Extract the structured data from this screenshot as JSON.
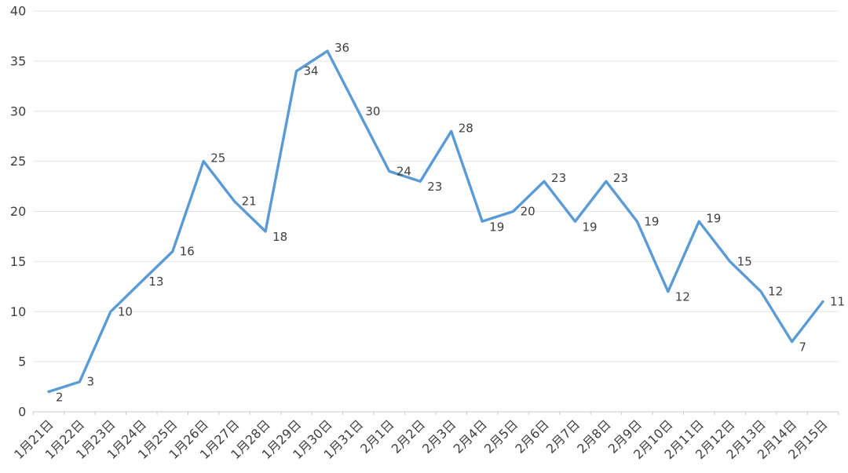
{
  "chart_data": {
    "type": "line",
    "title": "",
    "subtitle": "",
    "xlabel": "",
    "ylabel": "",
    "categories": [
      "1月21日",
      "1月22日",
      "1月23日",
      "1月24日",
      "1月25日",
      "1月26日",
      "1月27日",
      "1月28日",
      "1月29日",
      "1月30日",
      "1月31日",
      "2月1日",
      "2月2日",
      "2月3日",
      "2月4日",
      "2月5日",
      "2月6日",
      "2月7日",
      "2月8日",
      "2月9日",
      "2月10日",
      "2月11日",
      "2月12日",
      "2月13日",
      "2月14日",
      "2月15日"
    ],
    "values": [
      2,
      3,
      10,
      13,
      16,
      25,
      21,
      18,
      34,
      36,
      30,
      24,
      23,
      28,
      19,
      20,
      23,
      19,
      23,
      19,
      12,
      19,
      15,
      12,
      7,
      11
    ],
    "ylim": [
      0,
      40
    ],
    "ytick_step": 5,
    "grid": true,
    "legend_position": "none",
    "data_labels_visible": true,
    "x_label_rotation_deg": -45,
    "colors": {
      "line": "#5B9BD5",
      "grid": "#E4E4E4",
      "axis": "#C8C8C8",
      "tick_label": "#3F3F3F",
      "data_label": "#3F3F3F",
      "background": "#FFFFFF"
    }
  }
}
